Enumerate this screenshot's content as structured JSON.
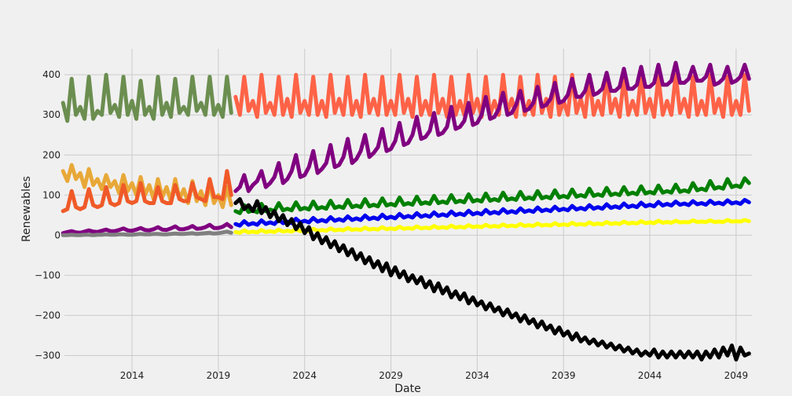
{
  "chart_data": {
    "type": "line",
    "title": "",
    "xlabel": "Date",
    "ylabel": "Renewables",
    "xlim": [
      "2010-02",
      "2049-12"
    ],
    "ylim": [
      -350,
      465
    ],
    "grid": true,
    "legend": "none",
    "x_ticks": [
      "2014",
      "2019",
      "2024",
      "2029",
      "2034",
      "2039",
      "2044",
      "2049"
    ],
    "y_ticks": [
      -300,
      -200,
      -100,
      0,
      100,
      200,
      300,
      400
    ],
    "background": "#f0f0f0",
    "grid_color": "#cbcbcb",
    "series": [
      {
        "color": "#6b8e50",
        "x_start": "2010-01",
        "x_end": "2019-12",
        "x_step_months": 3,
        "values": [
          330,
          285,
          390,
          300,
          320,
          290,
          395,
          290,
          310,
          300,
          400,
          305,
          325,
          295,
          395,
          300,
          335,
          290,
          385,
          300,
          320,
          290,
          395,
          300,
          330,
          295,
          390,
          305,
          320,
          300,
          395,
          310,
          330,
          300,
          395,
          300,
          325,
          295,
          395,
          305
        ]
      },
      {
        "color": "#ff6347",
        "x_start": "2020-01",
        "x_end": "2049-12",
        "x_step_months": 3,
        "values": [
          345,
          300,
          395,
          310,
          335,
          295,
          400,
          305,
          330,
          300,
          395,
          300,
          340,
          295,
          400,
          305,
          335,
          300,
          395,
          300,
          335,
          295,
          400,
          305,
          340,
          300,
          395,
          300,
          335,
          295,
          400,
          305,
          340,
          300,
          395,
          300,
          335,
          300,
          400,
          305,
          340,
          295,
          395,
          300,
          335,
          300,
          400,
          305,
          340,
          295,
          395,
          300,
          335,
          300,
          400,
          305,
          340,
          295,
          395,
          300,
          335,
          300,
          400,
          305,
          340,
          295,
          395,
          300,
          335,
          300,
          400,
          305,
          340,
          295,
          395,
          300,
          335,
          300,
          400,
          305,
          340,
          295,
          395,
          300,
          335,
          300,
          400,
          305,
          340,
          295,
          395,
          300,
          335,
          300,
          400,
          305,
          340,
          295,
          395,
          300,
          335,
          300,
          400,
          305,
          340,
          295,
          395,
          300,
          335,
          300,
          400,
          305,
          340,
          295,
          395,
          300,
          335,
          300,
          400,
          310
        ]
      },
      {
        "color": "#800080",
        "x_start": "2020-01",
        "x_end": "2049-12",
        "x_step_months": 3,
        "values": [
          110,
          120,
          150,
          110,
          125,
          135,
          160,
          120,
          130,
          145,
          180,
          130,
          140,
          160,
          200,
          145,
          150,
          170,
          210,
          155,
          165,
          180,
          225,
          170,
          175,
          195,
          240,
          180,
          190,
          210,
          250,
          195,
          205,
          220,
          265,
          210,
          215,
          235,
          280,
          225,
          230,
          250,
          295,
          240,
          245,
          260,
          305,
          250,
          255,
          270,
          320,
          265,
          270,
          285,
          330,
          275,
          280,
          300,
          345,
          290,
          295,
          315,
          355,
          300,
          305,
          325,
          360,
          310,
          315,
          330,
          370,
          320,
          325,
          340,
          380,
          330,
          335,
          350,
          390,
          345,
          345,
          360,
          400,
          350,
          355,
          365,
          405,
          360,
          360,
          370,
          415,
          365,
          365,
          375,
          420,
          370,
          370,
          380,
          425,
          375,
          375,
          385,
          430,
          380,
          380,
          390,
          420,
          385,
          385,
          395,
          425,
          375,
          380,
          390,
          420,
          380,
          385,
          395,
          425,
          390
        ]
      },
      {
        "color": "#e8a838",
        "x_start": "2010-01",
        "x_end": "2019-12",
        "x_step_months": 3,
        "values": [
          160,
          135,
          175,
          140,
          155,
          120,
          165,
          125,
          140,
          115,
          150,
          120,
          135,
          105,
          150,
          110,
          130,
          100,
          145,
          100,
          125,
          90,
          140,
          95,
          120,
          85,
          140,
          90,
          115,
          80,
          135,
          85,
          110,
          75,
          130,
          80,
          100,
          70,
          120,
          75
        ]
      },
      {
        "color": "#f05a28",
        "x_start": "2010-01",
        "x_end": "2019-12",
        "x_step_months": 3,
        "values": [
          60,
          65,
          110,
          70,
          65,
          70,
          115,
          75,
          70,
          75,
          120,
          80,
          75,
          80,
          125,
          85,
          80,
          85,
          130,
          85,
          80,
          80,
          120,
          85,
          80,
          80,
          125,
          90,
          85,
          85,
          130,
          95,
          90,
          85,
          140,
          95,
          95,
          90,
          160,
          100
        ]
      },
      {
        "color": "#008000",
        "x_start": "2020-01",
        "x_end": "2049-12",
        "x_step_months": 3,
        "values": [
          60,
          55,
          75,
          58,
          62,
          57,
          78,
          60,
          64,
          60,
          80,
          62,
          66,
          62,
          82,
          64,
          68,
          64,
          84,
          66,
          70,
          66,
          86,
          68,
          72,
          68,
          88,
          70,
          74,
          70,
          90,
          72,
          76,
          72,
          92,
          74,
          78,
          74,
          94,
          76,
          80,
          76,
          96,
          78,
          82,
          78,
          98,
          80,
          84,
          80,
          100,
          82,
          86,
          82,
          102,
          84,
          88,
          84,
          104,
          86,
          90,
          86,
          106,
          88,
          92,
          88,
          108,
          90,
          94,
          90,
          110,
          92,
          96,
          92,
          112,
          94,
          98,
          94,
          114,
          96,
          100,
          96,
          116,
          98,
          102,
          98,
          118,
          100,
          104,
          100,
          120,
          102,
          106,
          102,
          122,
          104,
          108,
          104,
          124,
          106,
          110,
          106,
          126,
          108,
          112,
          108,
          130,
          112,
          116,
          112,
          135,
          116,
          120,
          116,
          140,
          120,
          124,
          120,
          142,
          130
        ]
      },
      {
        "color": "#0000ee",
        "x_start": "2020-01",
        "x_end": "2049-12",
        "x_step_months": 3,
        "values": [
          28,
          24,
          35,
          26,
          30,
          26,
          37,
          28,
          32,
          28,
          39,
          30,
          34,
          30,
          41,
          32,
          36,
          32,
          43,
          34,
          38,
          34,
          45,
          36,
          40,
          36,
          47,
          38,
          42,
          38,
          49,
          40,
          44,
          40,
          51,
          42,
          46,
          42,
          53,
          44,
          48,
          44,
          55,
          46,
          50,
          46,
          57,
          48,
          52,
          48,
          59,
          50,
          54,
          50,
          61,
          52,
          56,
          52,
          63,
          54,
          58,
          54,
          65,
          56,
          60,
          56,
          67,
          58,
          62,
          58,
          69,
          60,
          64,
          60,
          71,
          62,
          66,
          62,
          73,
          64,
          68,
          64,
          75,
          66,
          70,
          66,
          77,
          68,
          72,
          68,
          79,
          70,
          74,
          70,
          81,
          72,
          76,
          72,
          83,
          74,
          78,
          74,
          84,
          76,
          79,
          75,
          85,
          77,
          80,
          76,
          86,
          78,
          81,
          77,
          87,
          79,
          82,
          78,
          88,
          82
        ]
      },
      {
        "color": "#ffff00",
        "x_start": "2020-01",
        "x_end": "2049-12",
        "x_step_months": 3,
        "values": [
          8,
          6,
          12,
          7,
          9,
          7,
          13,
          8,
          10,
          8,
          14,
          9,
          11,
          9,
          15,
          10,
          12,
          10,
          16,
          11,
          13,
          11,
          17,
          12,
          14,
          12,
          18,
          13,
          15,
          13,
          19,
          14,
          16,
          14,
          20,
          15,
          17,
          15,
          21,
          16,
          18,
          16,
          22,
          17,
          19,
          17,
          23,
          18,
          20,
          18,
          24,
          19,
          21,
          19,
          25,
          20,
          22,
          20,
          26,
          21,
          23,
          21,
          27,
          22,
          24,
          22,
          28,
          23,
          25,
          23,
          29,
          24,
          26,
          24,
          30,
          25,
          27,
          25,
          31,
          26,
          28,
          26,
          32,
          27,
          29,
          27,
          33,
          28,
          30,
          28,
          34,
          29,
          31,
          29,
          35,
          30,
          32,
          30,
          36,
          31,
          33,
          31,
          36,
          32,
          33,
          32,
          37,
          33,
          34,
          33,
          37,
          33,
          34,
          33,
          38,
          34,
          35,
          34,
          38,
          35
        ]
      },
      {
        "color": "#000000",
        "x_start": "2020-01",
        "x_end": "2049-12",
        "x_step_months": 3,
        "values": [
          80,
          90,
          65,
          75,
          60,
          85,
          55,
          70,
          45,
          60,
          35,
          50,
          25,
          40,
          15,
          30,
          5,
          20,
          -10,
          5,
          -20,
          -5,
          -30,
          -15,
          -40,
          -25,
          -50,
          -35,
          -60,
          -45,
          -70,
          -55,
          -80,
          -65,
          -90,
          -70,
          -100,
          -80,
          -105,
          -90,
          -115,
          -100,
          -120,
          -105,
          -130,
          -115,
          -140,
          -120,
          -145,
          -130,
          -155,
          -140,
          -160,
          -145,
          -170,
          -155,
          -175,
          -165,
          -185,
          -170,
          -190,
          -180,
          -200,
          -185,
          -205,
          -195,
          -215,
          -200,
          -220,
          -210,
          -230,
          -215,
          -235,
          -225,
          -245,
          -230,
          -250,
          -240,
          -260,
          -245,
          -265,
          -255,
          -270,
          -260,
          -275,
          -265,
          -280,
          -270,
          -285,
          -275,
          -290,
          -280,
          -295,
          -285,
          -300,
          -290,
          -300,
          -285,
          -305,
          -290,
          -305,
          -290,
          -305,
          -290,
          -305,
          -290,
          -305,
          -290,
          -310,
          -290,
          -305,
          -285,
          -305,
          -280,
          -300,
          -275,
          -310,
          -280,
          -300,
          -295
        ]
      },
      {
        "color": "#800080",
        "x_start": "2010-01",
        "x_end": "2019-12",
        "x_step_months": 3,
        "values": [
          5,
          8,
          10,
          7,
          6,
          9,
          12,
          9,
          8,
          11,
          14,
          10,
          10,
          13,
          17,
          12,
          11,
          14,
          18,
          13,
          12,
          15,
          20,
          14,
          13,
          17,
          22,
          15,
          15,
          18,
          23,
          16,
          17,
          20,
          26,
          18,
          18,
          21,
          28,
          20
        ]
      },
      {
        "color": "#808080",
        "x_start": "2010-01",
        "x_end": "2019-12",
        "x_step_months": 3,
        "values": [
          0,
          0,
          1,
          0,
          0,
          1,
          1,
          0,
          1,
          1,
          2,
          1,
          1,
          2,
          2,
          1,
          1,
          2,
          3,
          2,
          2,
          3,
          3,
          2,
          2,
          3,
          4,
          3,
          3,
          4,
          5,
          3,
          4,
          5,
          6,
          4,
          5,
          7,
          9,
          6
        ]
      }
    ]
  }
}
